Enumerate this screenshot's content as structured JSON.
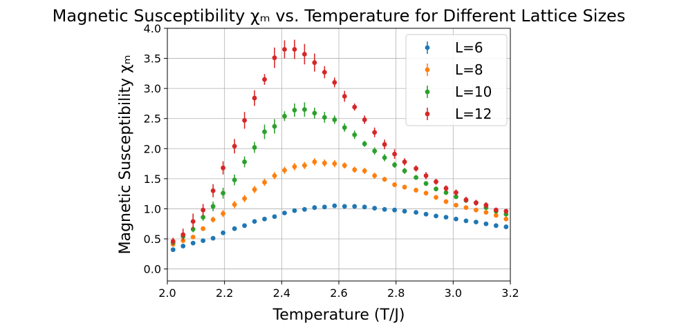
{
  "chart_data": {
    "type": "scatter",
    "title": "Magnetic Susceptibility χₘ vs. Temperature for Different Lattice Sizes",
    "xlabel": "Temperature (T/J)",
    "ylabel": "Magnetic Susceptibility χₘ",
    "xlim": [
      2.0,
      3.2
    ],
    "ylim": [
      -0.2,
      4.0
    ],
    "xticks": [
      "2.0",
      "2.2",
      "2.4",
      "2.6",
      "2.8",
      "3.0",
      "3.2"
    ],
    "yticks": [
      "0.0",
      "0.5",
      "1.0",
      "1.5",
      "2.0",
      "2.5",
      "3.0",
      "3.5",
      "4.0"
    ],
    "grid": true,
    "legend_position": "top-right",
    "x": [
      2.02,
      2.055,
      2.09,
      2.125,
      2.16,
      2.195,
      2.235,
      2.27,
      2.305,
      2.34,
      2.375,
      2.41,
      2.445,
      2.48,
      2.515,
      2.55,
      2.585,
      2.62,
      2.655,
      2.69,
      2.725,
      2.76,
      2.795,
      2.83,
      2.87,
      2.905,
      2.94,
      2.975,
      3.01,
      3.045,
      3.08,
      3.115,
      3.15,
      3.185
    ],
    "series": [
      {
        "name": "L=6",
        "color": "#1f77b4",
        "values": [
          0.32,
          0.38,
          0.43,
          0.47,
          0.51,
          0.6,
          0.67,
          0.72,
          0.79,
          0.83,
          0.87,
          0.93,
          0.97,
          0.99,
          1.02,
          1.03,
          1.05,
          1.04,
          1.04,
          1.03,
          1.01,
          0.99,
          0.98,
          0.96,
          0.94,
          0.91,
          0.88,
          0.86,
          0.83,
          0.8,
          0.78,
          0.75,
          0.72,
          0.7
        ],
        "errors": [
          0.02,
          0.02,
          0.02,
          0.02,
          0.02,
          0.02,
          0.02,
          0.02,
          0.02,
          0.02,
          0.02,
          0.02,
          0.03,
          0.03,
          0.04,
          0.03,
          0.03,
          0.02,
          0.02,
          0.02,
          0.02,
          0.02,
          0.02,
          0.02,
          0.02,
          0.02,
          0.02,
          0.02,
          0.02,
          0.02,
          0.02,
          0.02,
          0.02,
          0.02
        ]
      },
      {
        "name": "L=8",
        "color": "#ff7f0e",
        "values": [
          0.41,
          0.47,
          0.53,
          0.67,
          0.82,
          0.92,
          1.07,
          1.17,
          1.32,
          1.44,
          1.55,
          1.64,
          1.7,
          1.72,
          1.78,
          1.76,
          1.75,
          1.72,
          1.65,
          1.63,
          1.55,
          1.49,
          1.4,
          1.36,
          1.31,
          1.26,
          1.19,
          1.12,
          1.06,
          1.02,
          0.98,
          0.94,
          0.89,
          0.83
        ],
        "errors": [
          0.03,
          0.03,
          0.03,
          0.04,
          0.05,
          0.06,
          0.06,
          0.06,
          0.06,
          0.06,
          0.06,
          0.06,
          0.06,
          0.06,
          0.06,
          0.06,
          0.06,
          0.05,
          0.05,
          0.05,
          0.05,
          0.04,
          0.04,
          0.04,
          0.04,
          0.04,
          0.04,
          0.04,
          0.03,
          0.03,
          0.03,
          0.03,
          0.03,
          0.03
        ]
      },
      {
        "name": "L=10",
        "color": "#2ca02c",
        "values": [
          0.44,
          0.54,
          0.66,
          0.86,
          1.04,
          1.26,
          1.48,
          1.78,
          2.02,
          2.28,
          2.37,
          2.54,
          2.64,
          2.65,
          2.59,
          2.52,
          2.48,
          2.35,
          2.23,
          2.08,
          1.96,
          1.85,
          1.73,
          1.63,
          1.52,
          1.42,
          1.33,
          1.27,
          1.2,
          1.14,
          1.1,
          1.02,
          0.96,
          0.91
        ],
        "errors": [
          0.04,
          0.04,
          0.05,
          0.06,
          0.08,
          0.09,
          0.09,
          0.09,
          0.09,
          0.12,
          0.12,
          0.08,
          0.11,
          0.12,
          0.09,
          0.09,
          0.07,
          0.07,
          0.07,
          0.05,
          0.06,
          0.06,
          0.05,
          0.05,
          0.04,
          0.04,
          0.04,
          0.04,
          0.04,
          0.04,
          0.04,
          0.04,
          0.04,
          0.04
        ]
      },
      {
        "name": "L=12",
        "color": "#d62728",
        "values": [
          0.46,
          0.57,
          0.79,
          0.98,
          1.3,
          1.68,
          2.04,
          2.47,
          2.84,
          3.15,
          3.51,
          3.65,
          3.65,
          3.57,
          3.43,
          3.27,
          3.1,
          2.87,
          2.69,
          2.48,
          2.27,
          2.07,
          1.91,
          1.78,
          1.67,
          1.55,
          1.45,
          1.34,
          1.27,
          1.15,
          1.1,
          1.06,
          0.98,
          0.96
        ],
        "errors": [
          0.06,
          0.1,
          0.13,
          0.1,
          0.11,
          0.11,
          0.12,
          0.14,
          0.13,
          0.09,
          0.17,
          0.15,
          0.16,
          0.17,
          0.15,
          0.1,
          0.08,
          0.09,
          0.06,
          0.07,
          0.08,
          0.08,
          0.08,
          0.06,
          0.05,
          0.06,
          0.05,
          0.05,
          0.05,
          0.05,
          0.05,
          0.05,
          0.04,
          0.04
        ]
      }
    ]
  }
}
